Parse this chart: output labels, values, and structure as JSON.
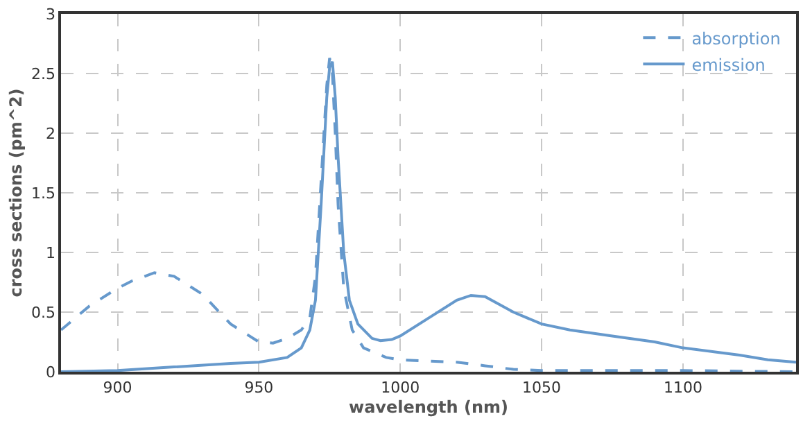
{
  "chart_data": {
    "type": "line",
    "xlabel": "wavelength (nm)",
    "ylabel": "cross sections (pm^2)",
    "xlim": [
      880,
      1140
    ],
    "xticks": [
      900,
      950,
      1000,
      1050,
      1100
    ],
    "ylim": [
      0,
      3
    ],
    "yticks": [
      0,
      0.5,
      1,
      1.5,
      2,
      2.5,
      3
    ],
    "grid": true,
    "legend": "top right",
    "series": [
      {
        "name": "absorption",
        "color": "#6699cc",
        "line_style": "dashed",
        "x": [
          880,
          890,
          900,
          905,
          913,
          920,
          930,
          940,
          950,
          955,
          960,
          965,
          968,
          970,
          972,
          974,
          975,
          976,
          977,
          978,
          980,
          983,
          987,
          995,
          1000,
          1010,
          1020,
          1030,
          1040,
          1050,
          1100,
          1140
        ],
        "values": [
          0.35,
          0.55,
          0.7,
          0.76,
          0.83,
          0.8,
          0.65,
          0.4,
          0.25,
          0.24,
          0.28,
          0.35,
          0.45,
          0.8,
          1.6,
          2.4,
          2.63,
          2.5,
          2.0,
          1.4,
          0.7,
          0.35,
          0.2,
          0.12,
          0.1,
          0.09,
          0.08,
          0.05,
          0.02,
          0.01,
          0.01,
          0.0
        ]
      },
      {
        "name": "emission",
        "color": "#6699cc",
        "line_style": "solid",
        "x": [
          880,
          900,
          920,
          940,
          950,
          960,
          965,
          968,
          970,
          972,
          974,
          975,
          976,
          977,
          978,
          980,
          982,
          985,
          990,
          993,
          997,
          1000,
          1010,
          1020,
          1025,
          1030,
          1040,
          1050,
          1060,
          1075,
          1090,
          1100,
          1120,
          1130,
          1140
        ],
        "values": [
          0,
          0.01,
          0.04,
          0.07,
          0.08,
          0.12,
          0.2,
          0.35,
          0.6,
          1.4,
          2.3,
          2.55,
          2.6,
          2.3,
          1.8,
          1.0,
          0.6,
          0.4,
          0.28,
          0.26,
          0.27,
          0.3,
          0.45,
          0.6,
          0.64,
          0.63,
          0.5,
          0.4,
          0.35,
          0.3,
          0.25,
          0.2,
          0.14,
          0.1,
          0.08
        ]
      }
    ]
  }
}
